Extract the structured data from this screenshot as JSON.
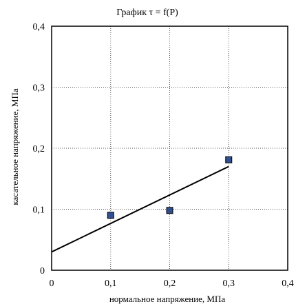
{
  "chart_data": {
    "type": "scatter",
    "title": "График τ = f(P)",
    "xlabel": "нормальное напряжение, МПа",
    "ylabel": "касательное напряжение, МПа",
    "xlim": [
      0,
      0.4
    ],
    "ylim": [
      0,
      0.4
    ],
    "x_ticks": [
      0,
      0.1,
      0.2,
      0.3,
      0.4
    ],
    "x_tick_labels": [
      "0",
      "0,1",
      "0,2",
      "0,3",
      "0,4"
    ],
    "y_ticks": [
      0,
      0.1,
      0.2,
      0.3,
      0.4
    ],
    "y_tick_labels": [
      "0",
      "0,1",
      "0,2",
      "0,3",
      "0,4"
    ],
    "grid": true,
    "legend": "none",
    "series": [
      {
        "marker": "square",
        "color": "#2f4f8f",
        "points": [
          {
            "x": 0.1,
            "y": 0.09
          },
          {
            "x": 0.2,
            "y": 0.098
          },
          {
            "x": 0.3,
            "y": 0.181
          }
        ]
      }
    ],
    "trendline": {
      "type": "line",
      "color": "#000000",
      "points": [
        {
          "x": 0,
          "y": 0.03
        },
        {
          "x": 0.3,
          "y": 0.17
        }
      ]
    }
  }
}
